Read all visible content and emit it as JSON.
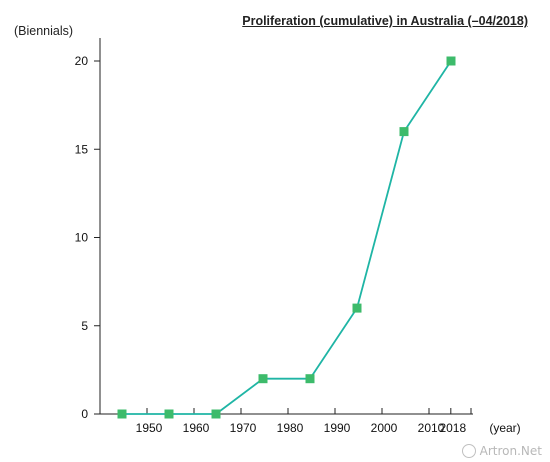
{
  "chart_data": {
    "type": "line",
    "title": "Proliferation (cumulative) in Australia (–04/2018)",
    "ylabel": "(Biennials)",
    "xlabel": "(year)",
    "x_ticks": [
      "1950",
      "1960",
      "1970",
      "1980",
      "1990",
      "2000",
      "2010",
      "2018"
    ],
    "y_ticks": [
      0,
      5,
      10,
      15,
      20
    ],
    "ylim": [
      0,
      20
    ],
    "x": [
      1945,
      1955,
      1965,
      1975,
      1985,
      1995,
      2005,
      2015
    ],
    "values": [
      0,
      0,
      0,
      2,
      2,
      6,
      16,
      20
    ],
    "colors": {
      "line": "#1fb5a5",
      "marker": "#3dbb6b",
      "axis": "#222222"
    }
  },
  "watermark": "Artron.Net"
}
